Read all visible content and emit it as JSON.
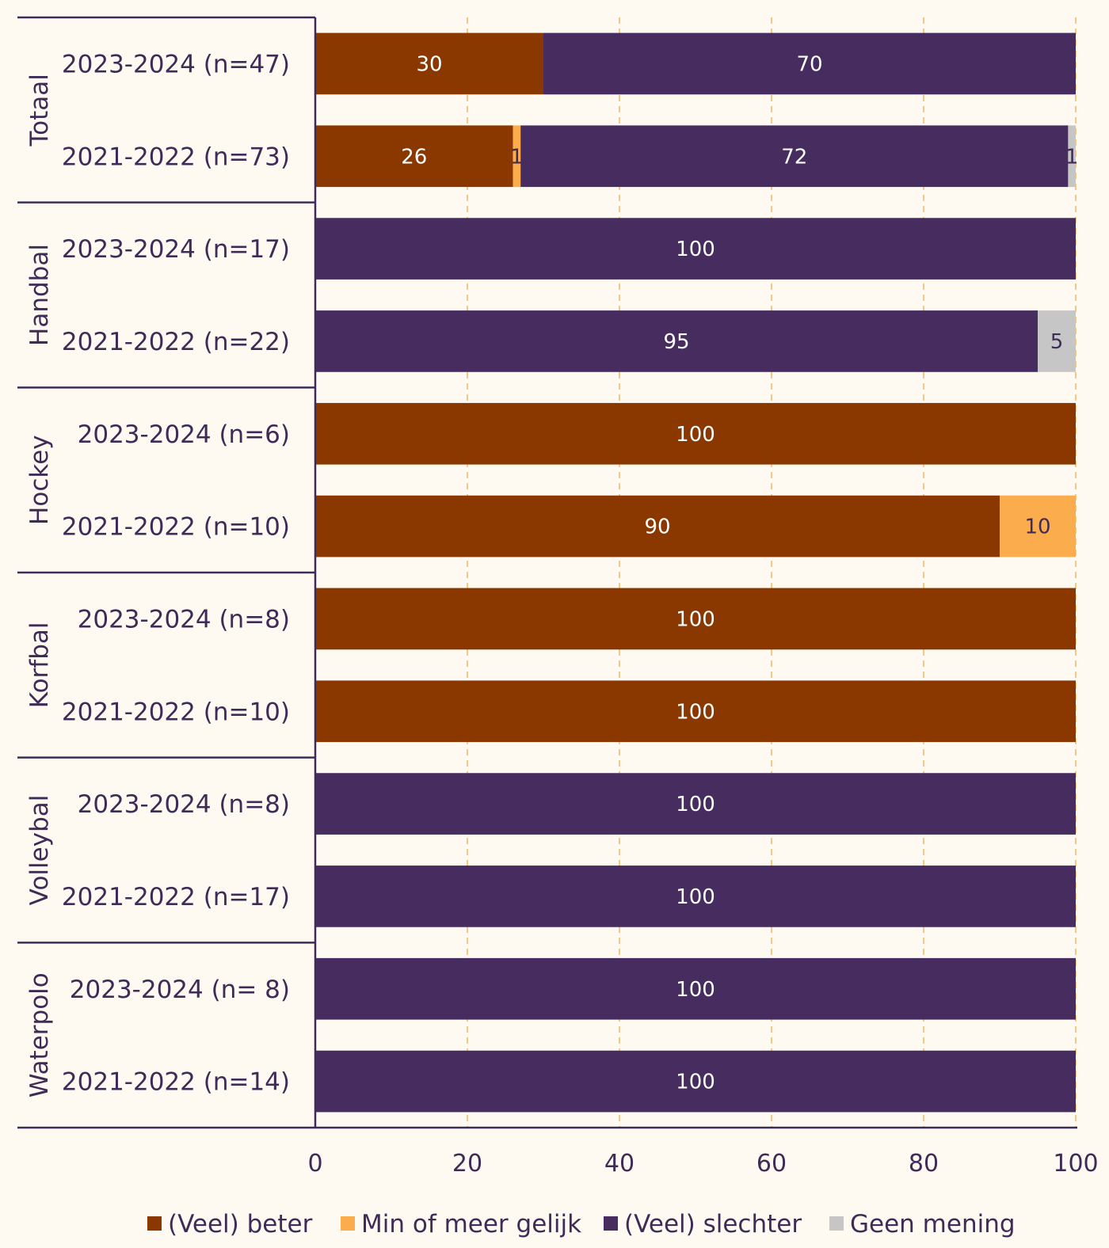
{
  "chart_data": {
    "type": "bar",
    "orientation": "horizontal",
    "stacked": true,
    "xlim": [
      0,
      100
    ],
    "x_ticks": [
      0,
      20,
      40,
      60,
      80,
      100
    ],
    "grid": "vertical-dashed",
    "legend_position": "bottom",
    "groups": [
      {
        "name": "Totaal",
        "rows": [
          {
            "label": "2023-2024 (n=47)",
            "values": [
              30,
              0,
              70,
              0
            ],
            "labels": [
              "30",
              "",
              "70",
              ""
            ]
          },
          {
            "label": "2021-2022 (n=73)",
            "values": [
              26,
              1,
              72,
              1
            ],
            "labels": [
              "26",
              "1",
              "72",
              "1"
            ]
          }
        ]
      },
      {
        "name": "Handbal",
        "rows": [
          {
            "label": "2023-2024 (n=17)",
            "values": [
              0,
              0,
              100,
              0
            ],
            "labels": [
              "",
              "",
              "100",
              ""
            ]
          },
          {
            "label": "2021-2022 (n=22)",
            "values": [
              0,
              0,
              95,
              5
            ],
            "labels": [
              "",
              "",
              "95",
              "5"
            ]
          }
        ]
      },
      {
        "name": "Hockey",
        "rows": [
          {
            "label": "2023-2024 (n=6)",
            "values": [
              100,
              0,
              0,
              0
            ],
            "labels": [
              "100",
              "",
              "",
              ""
            ]
          },
          {
            "label": "2021-2022 (n=10)",
            "values": [
              90,
              10,
              0,
              0
            ],
            "labels": [
              "90",
              "10",
              "",
              ""
            ]
          }
        ]
      },
      {
        "name": "Korfbal",
        "rows": [
          {
            "label": "2023-2024 (n=8)",
            "values": [
              100,
              0,
              0,
              0
            ],
            "labels": [
              "100",
              "",
              "",
              ""
            ]
          },
          {
            "label": "2021-2022 (n=10)",
            "values": [
              100,
              0,
              0,
              0
            ],
            "labels": [
              "100",
              "",
              "",
              ""
            ]
          }
        ]
      },
      {
        "name": "Volleybal",
        "rows": [
          {
            "label": "2023-2024 (n=8)",
            "values": [
              0,
              0,
              100,
              0
            ],
            "labels": [
              "",
              "",
              "100",
              ""
            ]
          },
          {
            "label": "2021-2022 (n=17)",
            "values": [
              0,
              0,
              100,
              0
            ],
            "labels": [
              "",
              "",
              "100",
              ""
            ]
          }
        ]
      },
      {
        "name": "Waterpolo",
        "rows": [
          {
            "label": "2023-2024 (n= 8)",
            "values": [
              0,
              0,
              100,
              0
            ],
            "labels": [
              "",
              "",
              "100",
              ""
            ]
          },
          {
            "label": "2021-2022 (n=14)",
            "values": [
              0,
              0,
              100,
              0
            ],
            "labels": [
              "",
              "",
              "100",
              ""
            ]
          }
        ]
      }
    ],
    "series": [
      {
        "name": "(Veel) beter",
        "color": "#8a3800",
        "label_color": "#ffffff"
      },
      {
        "name": "Min of meer gelijk",
        "color": "#fbac4d",
        "label_color": "#3f2b57"
      },
      {
        "name": "(Veel) slechter",
        "color": "#462c5f",
        "label_color": "#ffffff"
      },
      {
        "name": "Geen mening",
        "color": "#c6c6c6",
        "label_color": "#3f2b57"
      }
    ]
  }
}
